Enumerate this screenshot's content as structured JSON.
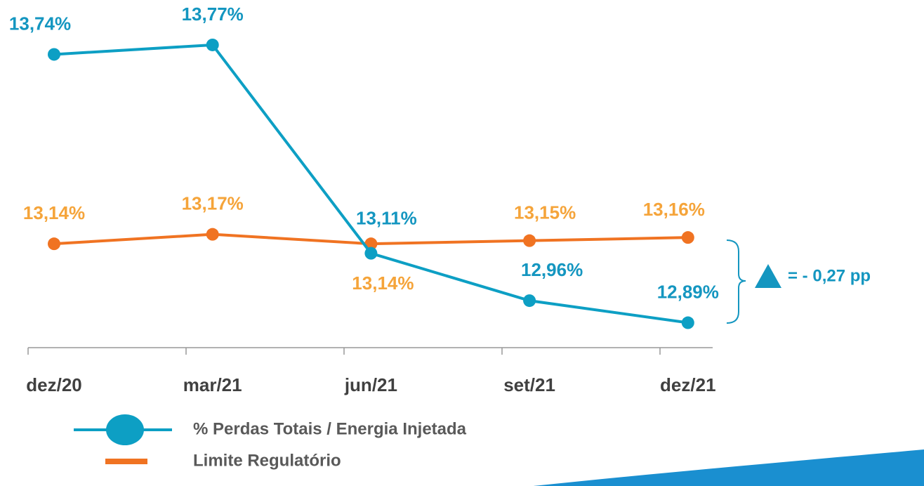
{
  "chart_data": {
    "type": "line",
    "categories": [
      "dez/20",
      "mar/21",
      "jun/21",
      "set/21",
      "dez/21"
    ],
    "series": [
      {
        "name": "% Perdas Totais / Energia Injetada",
        "color": "#0d9fc4",
        "label_color": "#1496c0",
        "values": [
          13.74,
          13.77,
          13.11,
          12.96,
          12.89
        ],
        "value_labels": [
          "13,74%",
          "13,77%",
          "13,11%",
          "12,96%",
          "12,89%"
        ]
      },
      {
        "name": "Limite Regulatório",
        "color": "#f07322",
        "label_color": "#f5a43a",
        "values": [
          13.14,
          13.17,
          13.14,
          13.15,
          13.16
        ],
        "value_labels": [
          "13,14%",
          "13,17%",
          "13,14%",
          "13,15%",
          "13,16%"
        ]
      }
    ],
    "ylim": [
      12.8,
      13.85
    ],
    "annotation": "= - 0,27 pp"
  }
}
